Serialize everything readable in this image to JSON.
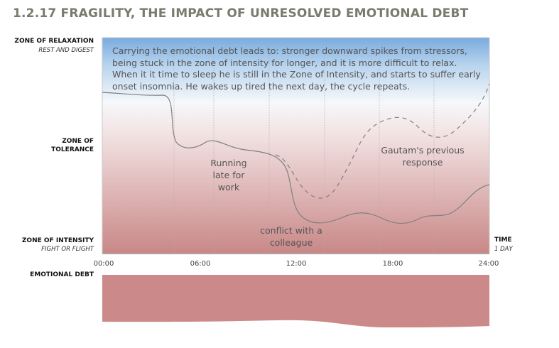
{
  "title": "1.2.17 FRAGILITY, THE IMPACT OF UNRESOLVED EMOTIONAL DEBT",
  "zones": {
    "relaxation": {
      "label": "ZONE OF RELAXATION",
      "sub": "REST AND DIGEST"
    },
    "tolerance": {
      "label_line1": "ZONE OF",
      "label_line2": "TOLERANCE"
    },
    "intensity": {
      "label": "ZONE OF INTENSITY",
      "sub": "FIGHT OR FLIGHT"
    }
  },
  "description": "Carrying the emotional debt leads to: stronger downward spikes from stressors, being stuck in the zone of intensity for longer, and it is more difficult to relax. When it it time to sleep he is still in the Zone of Intensity, and starts to suffer early onset insomnia. He wakes up tired the next day, the cycle repeats.",
  "annotations": {
    "running_late": [
      "Running",
      "late for",
      "work"
    ],
    "conflict": [
      "conflict with a",
      "colleague"
    ],
    "previous": [
      "Gautam's previous",
      "response"
    ]
  },
  "x_axis": {
    "ticks": [
      "00:00",
      "06:00",
      "12:00",
      "18:00",
      "24:00"
    ],
    "label": "TIME",
    "sub": "1 DAY"
  },
  "emotional_debt_label": "EMOTIONAL DEBT",
  "colors": {
    "relaxation": "#7aaee0",
    "intensity": "#c98787",
    "debt": "#cb8a89",
    "line": "#808080"
  }
}
